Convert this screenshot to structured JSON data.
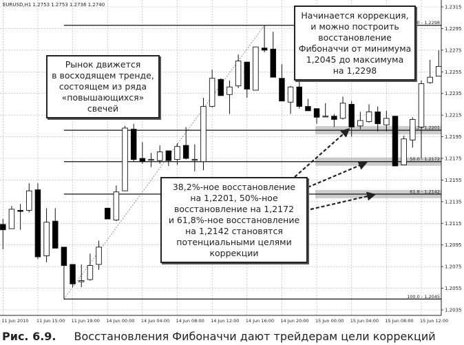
{
  "header": "EURUSD,H1  1.2753 1.2753 1.2736 1.2740",
  "annotations": {
    "trend": "Рынок движется\nв восходящем тренде,\nсостоящем из ряда\n«повышающихся»\nсвечей",
    "correction": "Начинается коррекция,\nи можно построить\nвосстановление\nФибоначчи от минимума\n1,2045 до максимума\nна 1,2298",
    "targets": "38,2%-ное восстановление\nна 1,2201, 50%-ное\nвосстановление на 1,2172\nи 61,8%-ное восстановление\nна 1,2142 становятся\nпотенциальными целями\nкоррекции"
  },
  "caption": {
    "number": "Рис. 6.9.",
    "text": "Восстановления Фибоначчи дают трейдерам цели коррекций"
  },
  "chart_data": {
    "type": "candlestick",
    "symbol": "EURUSD,H1",
    "ylim": [
      1.2035,
      1.2315
    ],
    "y_ticks": [
      "1.2315",
      "1.2295",
      "1.2275",
      "1.2255",
      "1.2235",
      "1.2215",
      "1.2195",
      "1.2175",
      "1.2155",
      "1.2135",
      "1.2115",
      "1.2095",
      "1.2075",
      "1.2055",
      "1.2035"
    ],
    "x_ticks": [
      "11 Jun 2010",
      "11 Jun 15:00",
      "11 Jun 19:00",
      "14 Jun 00:00",
      "14 Jun 04:00",
      "14 Jun 08:00",
      "14 Jun 12:00",
      "14 Jun 16:00",
      "14 Jun 20:00",
      "15 Jun 00:00",
      "15 Jun 04:00",
      "15 Jun 08:00",
      "15 Jun 12:00"
    ],
    "grid": true,
    "colors": {
      "bull": "#ffffff",
      "bear": "#000000",
      "band": "#cccccc"
    },
    "candles": [
      [
        1.2114,
        1.2119,
        1.2091,
        1.2109
      ],
      [
        1.211,
        1.2131,
        1.211,
        1.2128
      ],
      [
        1.2127,
        1.2133,
        1.2109,
        1.2126
      ],
      [
        1.2127,
        1.2152,
        1.2125,
        1.2145
      ],
      [
        1.2146,
        1.2152,
        1.2082,
        1.2084
      ],
      [
        1.2085,
        1.2129,
        1.2079,
        1.2116
      ],
      [
        1.2117,
        1.2129,
        1.2092,
        1.2092
      ],
      [
        1.2093,
        1.2093,
        1.2045,
        1.2076
      ],
      [
        1.2077,
        1.2077,
        1.2056,
        1.2059
      ],
      [
        1.2061,
        1.2077,
        1.2056,
        1.2062
      ],
      [
        1.2063,
        1.2087,
        1.2062,
        1.2076
      ],
      [
        1.2077,
        1.2099,
        1.2072,
        1.2093
      ],
      [
        1.2129,
        1.2129,
        1.2119,
        1.2119
      ],
      [
        1.2118,
        1.215,
        1.2117,
        1.2144
      ],
      [
        1.2145,
        1.2205,
        1.2145,
        1.2203
      ],
      [
        1.2202,
        1.2207,
        1.2172,
        1.2174
      ],
      [
        1.2175,
        1.219,
        1.217,
        1.2172
      ],
      [
        1.2174,
        1.218,
        1.2167,
        1.2174
      ],
      [
        1.2173,
        1.2187,
        1.217,
        1.2181
      ],
      [
        1.2182,
        1.2182,
        1.2168,
        1.2173
      ],
      [
        1.2174,
        1.2189,
        1.2169,
        1.2186
      ],
      [
        1.2187,
        1.2204,
        1.2174,
        1.2175
      ],
      [
        1.2174,
        1.2188,
        1.2163,
        1.2174
      ],
      [
        1.2172,
        1.2231,
        1.2164,
        1.2223
      ],
      [
        1.2223,
        1.2257,
        1.2222,
        1.2249
      ],
      [
        1.2248,
        1.2249,
        1.2233,
        1.2233
      ],
      [
        1.2234,
        1.2247,
        1.2216,
        1.2241
      ],
      [
        1.2242,
        1.2271,
        1.224,
        1.2265
      ],
      [
        1.2264,
        1.2264,
        1.2231,
        1.2239
      ],
      [
        1.2238,
        1.2278,
        1.2238,
        1.2278
      ],
      [
        1.2277,
        1.2298,
        1.2273,
        1.2275
      ],
      [
        1.2276,
        1.2292,
        1.225,
        1.225
      ],
      [
        1.2249,
        1.2262,
        1.2228,
        1.2228
      ],
      [
        1.2227,
        1.2242,
        1.2216,
        1.2241
      ],
      [
        1.2241,
        1.2247,
        1.2221,
        1.2223
      ],
      [
        1.2223,
        1.223,
        1.2219,
        1.2219
      ],
      [
        1.2221,
        1.2221,
        1.2207,
        1.2213
      ],
      [
        1.2214,
        1.2226,
        1.2213,
        1.2214
      ],
      [
        1.2214,
        1.2216,
        1.2204,
        1.2211
      ],
      [
        1.2212,
        1.2232,
        1.2211,
        1.2226
      ],
      [
        1.2225,
        1.2228,
        1.2195,
        1.2204
      ],
      [
        1.2205,
        1.2218,
        1.2202,
        1.221
      ],
      [
        1.2209,
        1.2225,
        1.2208,
        1.2218
      ],
      [
        1.2218,
        1.2223,
        1.22,
        1.2207
      ],
      [
        1.2206,
        1.2219,
        1.22,
        1.2212
      ],
      [
        1.2214,
        1.2214,
        1.2168,
        1.2168
      ],
      [
        1.2169,
        1.2196,
        1.2169,
        1.2193
      ],
      [
        1.2192,
        1.2213,
        1.2185,
        1.2211
      ],
      [
        1.2204,
        1.2247,
        1.2175,
        1.2244
      ],
      [
        1.2245,
        1.2266,
        1.2244,
        1.225
      ],
      [
        1.2251,
        1.2275,
        1.2251,
        1.226
      ]
    ],
    "candle_format": [
      "open",
      "high",
      "low",
      "close"
    ],
    "fibonacci": {
      "from_candle": 7,
      "to_candle": 30,
      "low": 1.2045,
      "high": 1.2298,
      "levels": [
        {
          "label": "0.0 - 1.2298",
          "value": 1.2298
        },
        {
          "label": "38.2 - 1.2201",
          "value": 1.2201,
          "band": true
        },
        {
          "label": "50.0 - 1.2172",
          "value": 1.2172,
          "band": true
        },
        {
          "label": "61.8 - 1.2142",
          "value": 1.2142,
          "band": true
        },
        {
          "label": "100.0 - 1.2045",
          "value": 1.2045
        }
      ]
    }
  }
}
